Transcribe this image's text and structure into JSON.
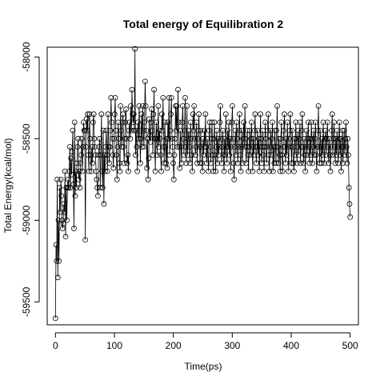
{
  "chart_data": {
    "type": "line",
    "title": "Total energy of Equilibration 2",
    "xlabel": "Time(ps)",
    "ylabel": "Total Energy(kcal/mol)",
    "xlim": [
      -14,
      514
    ],
    "ylim": [
      -59640,
      -57940
    ],
    "x_ticks": [
      0,
      100,
      200,
      300,
      400,
      500
    ],
    "x_tick_labels": [
      "0",
      "100",
      "200",
      "300",
      "400",
      "500"
    ],
    "y_ticks": [
      -58000,
      -58500,
      -59000,
      -59500
    ],
    "y_tick_labels": [
      "-58000",
      "-58500",
      "-59000",
      "-59500"
    ],
    "grid": false,
    "legend": "none",
    "colors": {
      "line": "#000000",
      "marker": "#000000",
      "background": "#ffffff"
    },
    "series": [
      {
        "values": [
          -59600,
          -59150,
          -59250,
          -58750,
          -59350,
          -59000,
          -59250,
          -58800,
          -58950,
          -58750,
          -58850,
          -59000,
          -59050,
          -59020,
          -58900,
          -58950,
          -58700,
          -59100,
          -58800,
          -59000,
          -58800,
          -58750,
          -58800,
          -58700,
          -58550,
          -58800,
          -58620,
          -58720,
          -58580,
          -58450,
          -58780,
          -59050,
          -58400,
          -58850,
          -58700,
          -58800,
          -58650,
          -58550,
          -58500,
          -58750,
          -58700,
          -58800,
          -58650,
          -58600,
          -58500,
          -58700,
          -58550,
          -58400,
          -58450,
          -58450,
          -59120,
          -58550,
          -58380,
          -58450,
          -58350,
          -58600,
          -58700,
          -58350,
          -58500,
          -58600,
          -58700,
          -58550,
          -58650,
          -58400,
          -58350,
          -58500,
          -58550,
          -58600,
          -58700,
          -58750,
          -58800,
          -58850,
          -58600,
          -58550,
          -58500,
          -58800,
          -58600,
          -58350,
          -58700,
          -58800,
          -58450,
          -58900,
          -58600,
          -58700,
          -58550,
          -58450,
          -58600,
          -58700,
          -58350,
          -58550,
          -58650,
          -58550,
          -58450,
          -58250,
          -58400,
          -58500,
          -58600,
          -58680,
          -58500,
          -58350,
          -58250,
          -58450,
          -58600,
          -58750,
          -58550,
          -58400,
          -58500,
          -58650,
          -58700,
          -58300,
          -58450,
          -58550,
          -58400,
          -58350,
          -58550,
          -58650,
          -58500,
          -58400,
          -58320,
          -58500,
          -58650,
          -58600,
          -58700,
          -58450,
          -58400,
          -58500,
          -58300,
          -58450,
          -58200,
          -58350,
          -58400,
          -58350,
          -58450,
          -57950,
          -58600,
          -58450,
          -58550,
          -58700,
          -58400,
          -58500,
          -58300,
          -58450,
          -58650,
          -58500,
          -58350,
          -58550,
          -58300,
          -58450,
          -58550,
          -58400,
          -58150,
          -58300,
          -58450,
          -58680,
          -58500,
          -58750,
          -58620,
          -58380,
          -58480,
          -58520,
          -58400,
          -58320,
          -58450,
          -58600,
          -58350,
          -58200,
          -58500,
          -58700,
          -58500,
          -58400,
          -58600,
          -58500,
          -58300,
          -58550,
          -58450,
          -58500,
          -58600,
          -58700,
          -58350,
          -58450,
          -58250,
          -58550,
          -58650,
          -58400,
          -58550,
          -58650,
          -58500,
          -58680,
          -58400,
          -58500,
          -58250,
          -58600,
          -58450,
          -58350,
          -58250,
          -58500,
          -58550,
          -58650,
          -58750,
          -58600,
          -58500,
          -58300,
          -58450,
          -58300,
          -58550,
          -58200,
          -58400,
          -58550,
          -58680,
          -58450,
          -58550,
          -58650,
          -58400,
          -58300,
          -58500,
          -58600,
          -58450,
          -58250,
          -58550,
          -58650,
          -58300,
          -58600,
          -58500,
          -58450,
          -58550,
          -58650,
          -58400,
          -58500,
          -58600,
          -58700,
          -58350,
          -58450,
          -58300,
          -58500,
          -58600,
          -58550,
          -58400,
          -58650,
          -58500,
          -58450,
          -58350,
          -58550,
          -58650,
          -58450,
          -58550,
          -58650,
          -58700,
          -58500,
          -58600,
          -58450,
          -58550,
          -58350,
          -58550,
          -58650,
          -58500,
          -58600,
          -58700,
          -58450,
          -58400,
          -58550,
          -58650,
          -58500,
          -58400,
          -58600,
          -58700,
          -58500,
          -58400,
          -58600,
          -58700,
          -58550,
          -58450,
          -58650,
          -58500,
          -58600,
          -58550,
          -58400,
          -58300,
          -58500,
          -58650,
          -58550,
          -58450,
          -58600,
          -58700,
          -58500,
          -58600,
          -58350,
          -58550,
          -58650,
          -58450,
          -58550,
          -58400,
          -58600,
          -58500,
          -58700,
          -58550,
          -58400,
          -58300,
          -58500,
          -58650,
          -58750,
          -58550,
          -58450,
          -58600,
          -58400,
          -58500,
          -58650,
          -58550,
          -58450,
          -58350,
          -58600,
          -58700,
          -58550,
          -58450,
          -58650,
          -58500,
          -58400,
          -58550,
          -58300,
          -58500,
          -58650,
          -58550,
          -58450,
          -58600,
          -58700,
          -58550,
          -58450,
          -58600,
          -58500,
          -58400,
          -58550,
          -58700,
          -58500,
          -58600,
          -58450,
          -58350,
          -58550,
          -58650,
          -58550,
          -58450,
          -58600,
          -58500,
          -58700,
          -58550,
          -58350,
          -58500,
          -58650,
          -58550,
          -58450,
          -58600,
          -58700,
          -58550,
          -58400,
          -58500,
          -58650,
          -58550,
          -58450,
          -58350,
          -58600,
          -58700,
          -58550,
          -58450,
          -58600,
          -58500,
          -58400,
          -58700,
          -58550,
          -58650,
          -58450,
          -58550,
          -58650,
          -58450,
          -58300,
          -58550,
          -58650,
          -58500,
          -58600,
          -58700,
          -58500,
          -58400,
          -58600,
          -58700,
          -58550,
          -58450,
          -58350,
          -58550,
          -58650,
          -58500,
          -58600,
          -58400,
          -58550,
          -58700,
          -58500,
          -58450,
          -58350,
          -58550,
          -58650,
          -58450,
          -58550,
          -58650,
          -58700,
          -58500,
          -58600,
          -58400,
          -58500,
          -58650,
          -58550,
          -58450,
          -58600,
          -58500,
          -58400,
          -58650,
          -58550,
          -58450,
          -58350,
          -58550,
          -58650,
          -58500,
          -58600,
          -58700,
          -58550,
          -58450,
          -58600,
          -58500,
          -58400,
          -58550,
          -58650,
          -58500,
          -58600,
          -58400,
          -58500,
          -58650,
          -58550,
          -58450,
          -58600,
          -58500,
          -58400,
          -58600,
          -58700,
          -58550,
          -58450,
          -58300,
          -58550,
          -58650,
          -58450,
          -58550,
          -58650,
          -58500,
          -58600,
          -58400,
          -58550,
          -58650,
          -58500,
          -58450,
          -58600,
          -58500,
          -58400,
          -58550,
          -58650,
          -58500,
          -58600,
          -58700,
          -58550,
          -58450,
          -58350,
          -58600,
          -58500,
          -58400,
          -58550,
          -58650,
          -58500,
          -58600,
          -58450,
          -58550,
          -58650,
          -58500,
          -58400,
          -58600,
          -58500,
          -58700,
          -58550,
          -58450,
          -58650,
          -58550,
          -58450,
          -58600,
          -58500,
          -58400,
          -58550,
          -58650,
          -58500,
          -58600,
          -58800,
          -58900,
          -58980
        ]
      }
    ]
  }
}
